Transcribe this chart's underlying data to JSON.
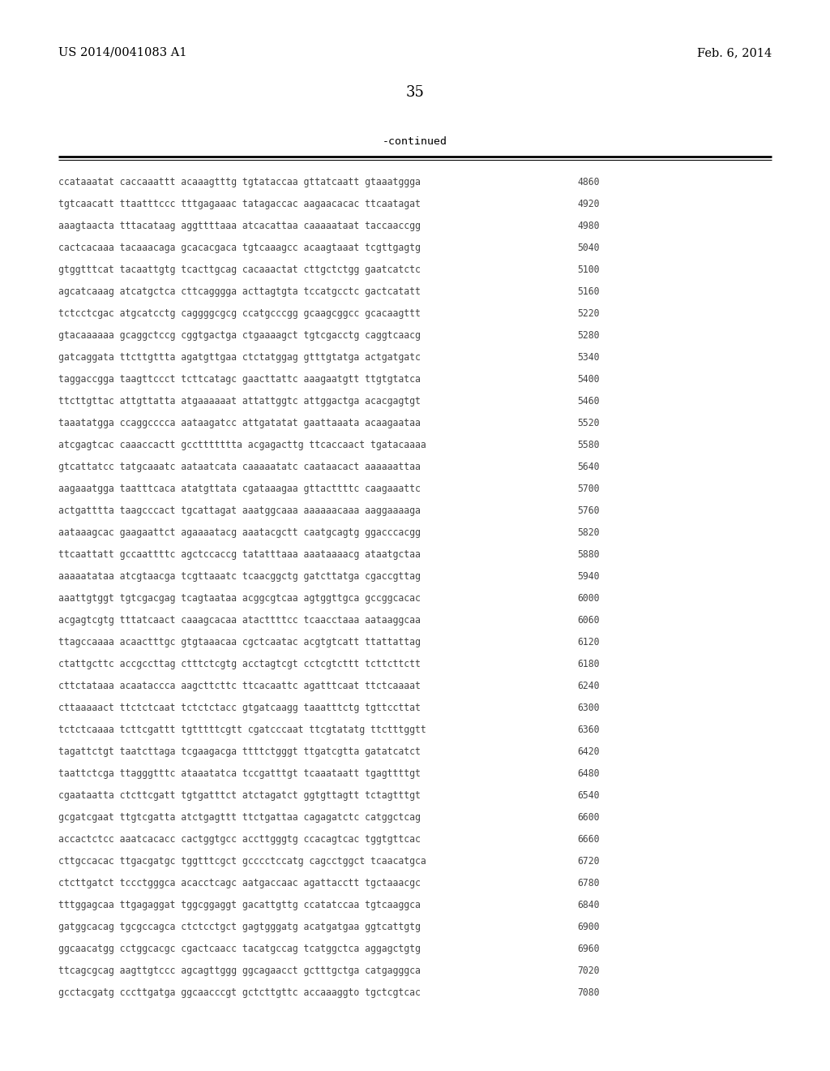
{
  "header_left": "US 2014/0041083 A1",
  "header_right": "Feb. 6, 2014",
  "page_number": "35",
  "continued_label": "-continued",
  "background_color": "#ffffff",
  "text_color": "#000000",
  "seq_color": "#444444",
  "lines": [
    {
      "seq": "ccataaatat caccaaattt acaaagtttg tgtataccaa gttatcaatt gtaaatggga",
      "num": "4860"
    },
    {
      "seq": "tgtcaacatt ttaatttccc tttgagaaac tatagaccac aagaacacac ttcaatagat",
      "num": "4920"
    },
    {
      "seq": "aaagtaacta tttacataag aggttttaaa atcacattaa caaaaataat taccaaccgg",
      "num": "4980"
    },
    {
      "seq": "cactcacaaa tacaaacaga gcacacgaca tgtcaaagcc acaagtaaat tcgttgagtg",
      "num": "5040"
    },
    {
      "seq": "gtggtttcat tacaattgtg tcacttgcag cacaaactat cttgctctgg gaatcatctc",
      "num": "5100"
    },
    {
      "seq": "agcatcaaag atcatgctca cttcagggga acttagtgta tccatgcctc gactcatatt",
      "num": "5160"
    },
    {
      "seq": "tctcctcgac atgcatcctg caggggcgcg ccatgcccgg gcaagcggcc gcacaagttt",
      "num": "5220"
    },
    {
      "seq": "gtacaaaaaa gcaggctccg cggtgactga ctgaaaagct tgtcgacctg caggtcaacg",
      "num": "5280"
    },
    {
      "seq": "gatcaggata ttcttgttta agatgttgaa ctctatggag gtttgtatga actgatgatc",
      "num": "5340"
    },
    {
      "seq": "taggaccgga taagttccct tcttcatagc gaacttattc aaagaatgtt ttgtgtatca",
      "num": "5400"
    },
    {
      "seq": "ttcttgttac attgttatta atgaaaaaat attattggtc attggactga acacgagtgt",
      "num": "5460"
    },
    {
      "seq": "taaatatgga ccaggcccca aataagatcc attgatatat gaattaaata acaagaataa",
      "num": "5520"
    },
    {
      "seq": "atcgagtcac caaaccactt gccttttttta acgagacttg ttcaccaact tgatacaaaa",
      "num": "5580"
    },
    {
      "seq": "gtcattatcc tatgcaaatc aataatcata caaaaatatc caataacact aaaaaattaa",
      "num": "5640"
    },
    {
      "seq": "aagaaatgga taatttcaca atatgttata cgataaagaa gttacttttc caagaaattc",
      "num": "5700"
    },
    {
      "seq": "actgatttta taagcccact tgcattagat aaatggcaaa aaaaaacaaa aaggaaaaga",
      "num": "5760"
    },
    {
      "seq": "aataaagcac gaagaattct agaaaatacg aaatacgctt caatgcagtg ggacccacgg",
      "num": "5820"
    },
    {
      "seq": "ttcaattatt gccaattttc agctccaccg tatatttaaa aaataaaacg ataatgctaa",
      "num": "5880"
    },
    {
      "seq": "aaaaatataa atcgtaacga tcgttaaatc tcaacggctg gatcttatga cgaccgttag",
      "num": "5940"
    },
    {
      "seq": "aaattgtggt tgtcgacgag tcagtaataa acggcgtcaa agtggttgca gccggcacac",
      "num": "6000"
    },
    {
      "seq": "acgagtcgtg tttatcaact caaagcacaa atacttttcc tcaacctaaa aataaggcaa",
      "num": "6060"
    },
    {
      "seq": "ttagccaaaa acaactttgc gtgtaaacaa cgctcaatac acgtgtcatt ttattattag",
      "num": "6120"
    },
    {
      "seq": "ctattgcttc accgccttag ctttctcgtg acctagtcgt cctcgtcttt tcttcttctt",
      "num": "6180"
    },
    {
      "seq": "cttctataaa acaataccca aagcttcttc ttcacaattc agatttcaat ttctcaaaat",
      "num": "6240"
    },
    {
      "seq": "cttaaaaact ttctctcaat tctctctacc gtgatcaagg taaatttctg tgttccttat",
      "num": "6300"
    },
    {
      "seq": "tctctcaaaa tcttcgattt tgtttttcgtt cgatcccaat ttcgtatatg ttctttggtt",
      "num": "6360"
    },
    {
      "seq": "tagattctgt taatcttaga tcgaagacga ttttctgggt ttgatcgtta gatatcatct",
      "num": "6420"
    },
    {
      "seq": "taattctcga ttagggtttc ataaatatca tccgatttgt tcaaataatt tgagttttgt",
      "num": "6480"
    },
    {
      "seq": "cgaataatta ctcttcgatt tgtgatttct atctagatct ggtgttagtt tctagtttgt",
      "num": "6540"
    },
    {
      "seq": "gcgatcgaat ttgtcgatta atctgagttt ttctgattaa cagagatctc catggctcag",
      "num": "6600"
    },
    {
      "seq": "accactctcc aaatcacacc cactggtgcc accttgggtg ccacagtcac tggtgttcac",
      "num": "6660"
    },
    {
      "seq": "cttgccacac ttgacgatgc tggtttcgct gcccctccatg cagcctggct tcaacatgca",
      "num": "6720"
    },
    {
      "seq": "ctcttgatct tccctgggca acacctcagc aatgaccaac agattacctt tgctaaacgc",
      "num": "6780"
    },
    {
      "seq": "tttggagcaa ttgagaggat tggcggaggt gacattgttg ccatatccaa tgtcaaggca",
      "num": "6840"
    },
    {
      "seq": "gatggcacag tgcgccagca ctctcctgct gagtgggatg acatgatgaa ggtcattgtg",
      "num": "6900"
    },
    {
      "seq": "ggcaacatgg cctggcacgc cgactcaacc tacatgccag tcatggctca aggagctgtg",
      "num": "6960"
    },
    {
      "seq": "ttcagcgcag aagttgtccc agcagttggg ggcagaacct gctttgctga catgagggca",
      "num": "7020"
    },
    {
      "seq": "gcctacgatg cccttgatga ggcaacccgt gctcttgttc accaaaggto tgctcgtcac",
      "num": "7080"
    }
  ]
}
